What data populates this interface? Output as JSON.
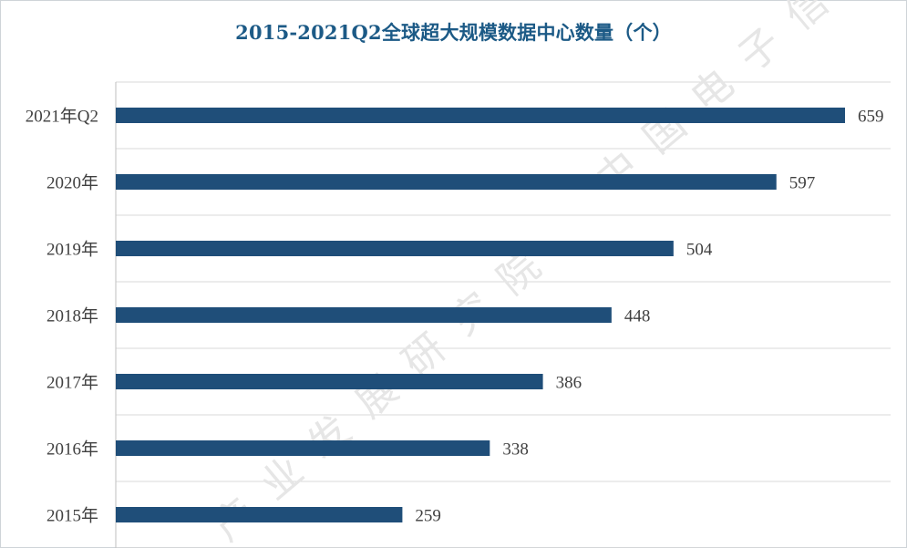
{
  "chart_data": {
    "type": "bar",
    "orientation": "horizontal",
    "title": "2015-2021Q2全球超大规模数据中心数量（个）",
    "categories": [
      "2021年Q2",
      "2020年",
      "2019年",
      "2018年",
      "2017年",
      "2016年",
      "2015年"
    ],
    "values": [
      659,
      597,
      504,
      448,
      386,
      338,
      259
    ],
    "xlim": [
      0,
      700
    ],
    "grid": true,
    "legend": "none",
    "bar_color": "#1f4e79"
  }
}
